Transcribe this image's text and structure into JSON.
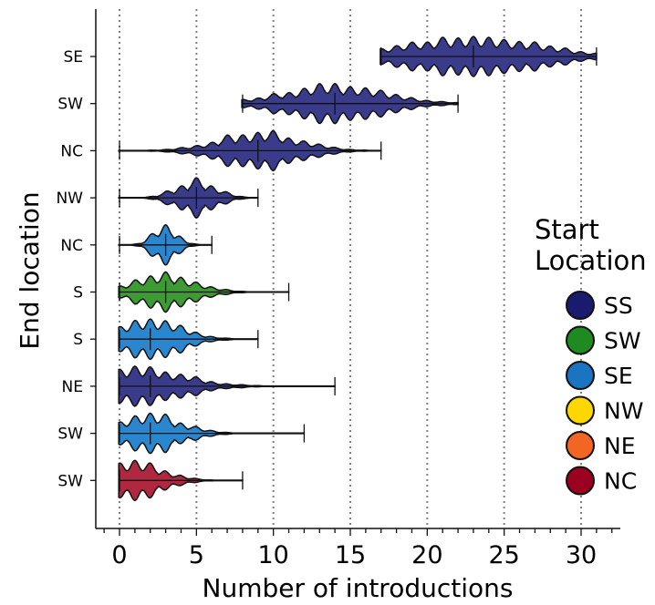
{
  "chart_data": {
    "type": "violin",
    "title": "",
    "xlabel": "Number of introductions",
    "ylabel": "End location",
    "xlim": [
      -1.5,
      32.5
    ],
    "xticks": [
      0,
      5,
      10,
      15,
      20,
      25,
      30
    ],
    "grid": "vertical dotted at x ticks",
    "orientation": "horizontal",
    "rows": [
      {
        "end_location": "SE",
        "start_location": "SS",
        "min": 17,
        "max": 31,
        "median": 23,
        "mode": 23,
        "spread": 4.2
      },
      {
        "end_location": "SW",
        "start_location": "SS",
        "min": 8,
        "max": 22,
        "median": 14,
        "mode": 14,
        "spread": 3.2
      },
      {
        "end_location": "NC",
        "start_location": "SS",
        "min": 0,
        "max": 17,
        "median": 9,
        "mode": 9,
        "spread": 2.6
      },
      {
        "end_location": "NW",
        "start_location": "SS",
        "min": 0,
        "max": 9,
        "median": 5,
        "mode": 5,
        "spread": 1.3
      },
      {
        "end_location": "NC",
        "start_location": "SE",
        "min": 0,
        "max": 6,
        "median": 3,
        "mode": 3,
        "spread": 0.8
      },
      {
        "end_location": "S",
        "start_location": "SW",
        "min": 0,
        "max": 11,
        "median": 3,
        "mode": 3,
        "spread": 2.0
      },
      {
        "end_location": "S",
        "start_location": "SE",
        "min": 0,
        "max": 9,
        "median": 2,
        "mode": 2,
        "spread": 2.0
      },
      {
        "end_location": "NE",
        "start_location": "SS",
        "min": 0,
        "max": 14,
        "median": 2,
        "mode": 1,
        "spread": 3.0
      },
      {
        "end_location": "SW",
        "start_location": "SE",
        "min": 0,
        "max": 12,
        "median": 2,
        "mode": 2,
        "spread": 2.0
      },
      {
        "end_location": "SW",
        "start_location": "NC",
        "min": 0,
        "max": 8,
        "median": 0,
        "mode": 1,
        "spread": 1.8
      }
    ],
    "legend": {
      "title": "Start\nLocation",
      "placement": "right",
      "entries": [
        {
          "label": "SS",
          "color": "#1a1a6e"
        },
        {
          "label": "SW",
          "color": "#1f8a1f"
        },
        {
          "label": "SE",
          "color": "#1a74c2"
        },
        {
          "label": "NW",
          "color": "#ffd700"
        },
        {
          "label": "NE",
          "color": "#f26522"
        },
        {
          "label": "NC",
          "color": "#9b0020"
        }
      ]
    },
    "fill_colors": {
      "SS": "#3a3b8a",
      "SW": "#3e9b33",
      "SE": "#2a86cf",
      "NC": "#b0283f"
    }
  }
}
